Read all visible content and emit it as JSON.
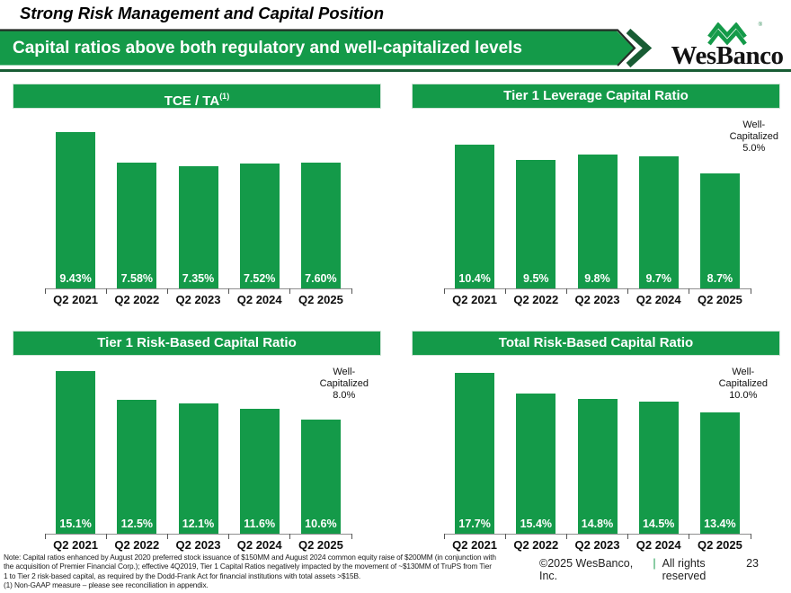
{
  "slide": {
    "title": "Strong Risk Management and Capital Position",
    "banner": "Capital ratios above both regulatory and well-capitalized levels",
    "logo_text": "WesBanco",
    "logo_reg": "®",
    "copyright": "©2025 WesBanco, Inc.",
    "copyright_separator": "|",
    "rights": "All rights reserved",
    "page_number": "23",
    "notes": [
      "Note: Capital ratios enhanced by August 2020 preferred stock issuance of $150MM and August 2024 common equity raise of $200MM (in conjunction with",
      "the acquisition of Premier Financial Corp.); effective 4Q2019, Tier 1 Capital Ratios negatively impacted by the movement of ~$130MM of TruPS from Tier",
      "1 to Tier 2 risk-based capital, as required by the Dodd-Frank Act for financial institutions with total assets >$15B.",
      "(1) Non-GAAP measure – please see reconciliation in appendix."
    ]
  },
  "colors": {
    "brand_green": "#149A49",
    "dark_green_rule": "#185C34",
    "banner_edge": "#242B26",
    "axis_gray": "#8E8E8E"
  },
  "chart_data": [
    {
      "type": "bar",
      "title": "TCE / TA",
      "title_sup": "(1)",
      "categories": [
        "Q2 2021",
        "Q2 2022",
        "Q2 2023",
        "Q2 2024",
        "Q2 2025"
      ],
      "values": [
        9.43,
        7.58,
        7.35,
        7.52,
        7.6
      ],
      "value_labels": [
        "9.43%",
        "7.58%",
        "7.35%",
        "7.52%",
        "7.60%"
      ],
      "ylim": [
        0,
        9.9
      ],
      "grid": false,
      "annotation": null
    },
    {
      "type": "bar",
      "title": "Tier 1 Leverage Capital Ratio",
      "categories": [
        "Q2 2021",
        "Q2 2022",
        "Q2 2023",
        "Q2 2024",
        "Q2 2025"
      ],
      "values": [
        10.4,
        9.5,
        9.8,
        9.7,
        8.7
      ],
      "value_labels": [
        "10.4%",
        "9.5%",
        "9.8%",
        "9.7%",
        "8.7%"
      ],
      "ylim": [
        2,
        11.6
      ],
      "grid": false,
      "annotation": [
        "Well-",
        "Capitalized",
        "5.0%"
      ]
    },
    {
      "type": "bar",
      "title": "Tier 1 Risk-Based Capital Ratio",
      "categories": [
        "Q2 2021",
        "Q2 2022",
        "Q2 2023",
        "Q2 2024",
        "Q2 2025"
      ],
      "values": [
        15.1,
        12.5,
        12.1,
        11.6,
        10.6
      ],
      "value_labels": [
        "15.1%",
        "12.5%",
        "12.1%",
        "11.6%",
        "10.6%"
      ],
      "ylim": [
        0,
        15.3
      ],
      "grid": false,
      "annotation": [
        "Well-",
        "Capitalized",
        "8.0%"
      ]
    },
    {
      "type": "bar",
      "title": "Total Risk-Based Capital Ratio",
      "categories": [
        "Q2 2021",
        "Q2 2022",
        "Q2 2023",
        "Q2 2024",
        "Q2 2025"
      ],
      "values": [
        17.7,
        15.4,
        14.8,
        14.5,
        13.4
      ],
      "value_labels": [
        "17.7%",
        "15.4%",
        "14.8%",
        "14.5%",
        "13.4%"
      ],
      "ylim": [
        0,
        18.1
      ],
      "grid": false,
      "annotation": [
        "Well-",
        "Capitalized",
        "10.0%"
      ]
    }
  ]
}
